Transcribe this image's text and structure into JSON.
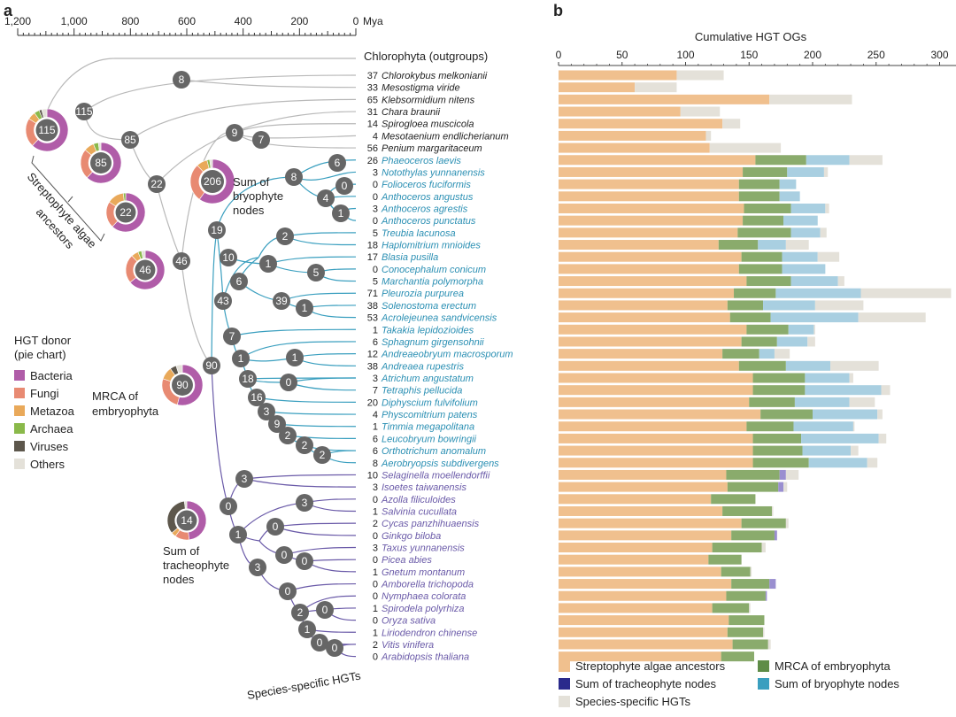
{
  "panels": {
    "a": "a",
    "b": "b"
  },
  "timeline": {
    "ticks": [
      {
        "label": "1,200",
        "v": 1200
      },
      {
        "label": "1,000",
        "v": 1000
      },
      {
        "label": "800",
        "v": 800
      },
      {
        "label": "600",
        "v": 600
      },
      {
        "label": "400",
        "v": 400
      },
      {
        "label": "200",
        "v": 200
      },
      {
        "label": "0",
        "v": 0
      }
    ],
    "unit": "Mya"
  },
  "outgroup": "Chlorophyta (outgroups)",
  "tree_labels": {
    "sum_bryophyte": [
      "Sum of",
      "bryophyte",
      "nodes"
    ],
    "streptophyte": [
      "Streptophyte algae",
      "ancestors"
    ],
    "mrca": [
      "MRCA of",
      "embryophyta"
    ],
    "sum_tracheophyte": [
      "Sum of",
      "tracheophyte",
      "nodes"
    ],
    "species_specific": "Species-specific HGTs"
  },
  "pie_legend": {
    "title": [
      "HGT donor",
      "(pie chart)"
    ],
    "items": [
      {
        "label": "Bacteria",
        "color": "#b05ca8"
      },
      {
        "label": "Fungi",
        "color": "#e88a72"
      },
      {
        "label": "Metazoa",
        "color": "#e9a95a"
      },
      {
        "label": "Archaea",
        "color": "#8ab94a"
      },
      {
        "label": "Viruses",
        "color": "#5d574c"
      },
      {
        "label": "Others",
        "color": "#e4e1d9"
      }
    ]
  },
  "pies": [
    {
      "label": "115"
    },
    {
      "label": "85"
    },
    {
      "label": "22"
    },
    {
      "label": "46"
    },
    {
      "label": "206"
    },
    {
      "label": "90"
    },
    {
      "label": "14"
    }
  ],
  "tree_nodes": [
    "8",
    "115",
    "85",
    "22",
    "46",
    "9",
    "7",
    "90",
    "6",
    "8",
    "0",
    "4",
    "1",
    "19",
    "2",
    "10",
    "1",
    "5",
    "6",
    "39",
    "1",
    "43",
    "7",
    "1",
    "1",
    "18",
    "0",
    "16",
    "3",
    "9",
    "2",
    "2",
    "2",
    "3",
    "0",
    "3",
    "1",
    "0",
    "0",
    "0",
    "3",
    "0",
    "2",
    "0",
    "1",
    "0",
    "0"
  ],
  "species": [
    {
      "name": "Chlorokybus melkonianii",
      "count": "37",
      "group": "alga"
    },
    {
      "name": "Mesostigma viride",
      "count": "33",
      "group": "alga"
    },
    {
      "name": "Klebsormidium nitens",
      "count": "65",
      "group": "alga"
    },
    {
      "name": "Chara braunii",
      "count": "31",
      "group": "alga"
    },
    {
      "name": "Spirogloea muscicola",
      "count": "14",
      "group": "alga"
    },
    {
      "name": "Mesotaenium endlicherianum",
      "count": "4",
      "group": "alga"
    },
    {
      "name": "Penium margaritaceum",
      "count": "56",
      "group": "alga"
    },
    {
      "name": "Phaeoceros laevis",
      "count": "26",
      "group": "bryo"
    },
    {
      "name": "Notothylas yunnanensis",
      "count": "3",
      "group": "bryo"
    },
    {
      "name": "Folioceros fuciformis",
      "count": "0",
      "group": "bryo"
    },
    {
      "name": "Anthoceros angustus",
      "count": "0",
      "group": "bryo"
    },
    {
      "name": "Anthoceros agrestis",
      "count": "3",
      "group": "bryo"
    },
    {
      "name": "Anthoceros punctatus",
      "count": "0",
      "group": "bryo"
    },
    {
      "name": "Treubia lacunosa",
      "count": "5",
      "group": "bryo"
    },
    {
      "name": "Haplomitrium mnioides",
      "count": "18",
      "group": "bryo"
    },
    {
      "name": "Blasia pusilla",
      "count": "17",
      "group": "bryo"
    },
    {
      "name": "Conocephalum conicum",
      "count": "0",
      "group": "bryo"
    },
    {
      "name": "Marchantia polymorpha",
      "count": "5",
      "group": "bryo"
    },
    {
      "name": "Pleurozia purpurea",
      "count": "71",
      "group": "bryo"
    },
    {
      "name": "Solenostoma erectum",
      "count": "38",
      "group": "bryo"
    },
    {
      "name": "Acrolejeunea sandvicensis",
      "count": "53",
      "group": "bryo"
    },
    {
      "name": "Takakia lepidozioides",
      "count": "1",
      "group": "bryo"
    },
    {
      "name": "Sphagnum girgensohnii",
      "count": "6",
      "group": "bryo"
    },
    {
      "name": "Andreaeobryum macrosporum",
      "count": "12",
      "group": "bryo"
    },
    {
      "name": "Andreaea rupestris",
      "count": "38",
      "group": "bryo"
    },
    {
      "name": "Atrichum angustatum",
      "count": "3",
      "group": "bryo"
    },
    {
      "name": "Tetraphis pellucida",
      "count": "7",
      "group": "bryo"
    },
    {
      "name": "Diphyscium fulvifolium",
      "count": "20",
      "group": "bryo"
    },
    {
      "name": "Physcomitrium patens",
      "count": "4",
      "group": "bryo"
    },
    {
      "name": "Timmia megapolitana",
      "count": "1",
      "group": "bryo"
    },
    {
      "name": "Leucobryum bowringii",
      "count": "6",
      "group": "bryo"
    },
    {
      "name": "Orthotrichum anomalum",
      "count": "6",
      "group": "bryo"
    },
    {
      "name": "Aerobryopsis subdivergens",
      "count": "8",
      "group": "bryo"
    },
    {
      "name": "Selaginella moellendorffii",
      "count": "10",
      "group": "trach"
    },
    {
      "name": "Isoetes taiwanensis",
      "count": "3",
      "group": "trach"
    },
    {
      "name": "Azolla filiculoides",
      "count": "0",
      "group": "trach"
    },
    {
      "name": "Salvinia cucullata",
      "count": "1",
      "group": "trach"
    },
    {
      "name": "Cycas panzhihuaensis",
      "count": "2",
      "group": "trach"
    },
    {
      "name": "Ginkgo biloba",
      "count": "0",
      "group": "trach"
    },
    {
      "name": "Taxus yunnanensis",
      "count": "3",
      "group": "trach"
    },
    {
      "name": "Picea abies",
      "count": "0",
      "group": "trach"
    },
    {
      "name": "Gnetum montanum",
      "count": "1",
      "group": "trach"
    },
    {
      "name": "Amborella trichopoda",
      "count": "0",
      "group": "trach"
    },
    {
      "name": "Nymphaea colorata",
      "count": "0",
      "group": "trach"
    },
    {
      "name": "Spirodela polyrhiza",
      "count": "1",
      "group": "trach"
    },
    {
      "name": "Oryza sativa",
      "count": "0",
      "group": "trach"
    },
    {
      "name": "Liriodendron chinense",
      "count": "1",
      "group": "trach"
    },
    {
      "name": "Vitis vinifera",
      "count": "2",
      "group": "trach"
    },
    {
      "name": "Arabidopsis thaliana",
      "count": "0",
      "group": "trach"
    }
  ],
  "colors": {
    "alga_text": "#222222",
    "bryo_text": "#2a8fb3",
    "trach_text": "#6a5aa8",
    "bryo_branch": "#3a9fbf",
    "trach_branch": "#6a5aa8",
    "alga_branch": "#b8b8b8",
    "node_fill": "#666666"
  },
  "chart_data": {
    "type": "bar",
    "stacked": true,
    "orientation": "horizontal",
    "xlabel": "Cumulative HGT OGs",
    "xlim": [
      0,
      310
    ],
    "xticks": [
      0,
      50,
      100,
      150,
      200,
      250,
      300
    ],
    "legend_position": "bottom",
    "series": [
      {
        "name": "Streptophyte algae ancestors",
        "color": "#f0c08e",
        "values": [
          93,
          60,
          166,
          96,
          129,
          116,
          119,
          155,
          145,
          142,
          142,
          146,
          145,
          141,
          126,
          144,
          142,
          148,
          138,
          133,
          135,
          148,
          144,
          129,
          142,
          153,
          153,
          150,
          159,
          148,
          153,
          153,
          153,
          132,
          133,
          120,
          129,
          144,
          136,
          121,
          118,
          128,
          136,
          132,
          121,
          134,
          133,
          137,
          128
        ]
      },
      {
        "name": "MRCA of embryophyta",
        "color": "#8aab6c",
        "values": [
          0,
          0,
          0,
          0,
          0,
          0,
          0,
          40,
          35,
          32,
          32,
          37,
          32,
          42,
          31,
          32,
          34,
          35,
          33,
          28,
          32,
          33,
          28,
          29,
          37,
          41,
          41,
          36,
          41,
          37,
          38,
          39,
          44,
          42,
          40,
          35,
          39,
          35,
          34,
          39,
          26,
          23,
          30,
          31,
          29,
          28,
          28,
          28,
          26
        ]
      },
      {
        "name": "Sum of tracheophyte nodes",
        "color": "#9a8fd0",
        "values": [
          0,
          0,
          0,
          0,
          0,
          0,
          0,
          0,
          0,
          0,
          0,
          0,
          0,
          0,
          0,
          0,
          0,
          0,
          0,
          0,
          0,
          0,
          0,
          0,
          0,
          0,
          0,
          0,
          0,
          0,
          0,
          0,
          0,
          5,
          4,
          0,
          0,
          0,
          2,
          0,
          0,
          0,
          5,
          1,
          0,
          0,
          0,
          0,
          0
        ]
      },
      {
        "name": "Sum of bryophyte nodes",
        "color": "#a9cfe1",
        "values": [
          0,
          0,
          0,
          0,
          0,
          0,
          0,
          34,
          29,
          13,
          16,
          27,
          27,
          23,
          22,
          28,
          34,
          37,
          67,
          41,
          69,
          20,
          24,
          12,
          35,
          35,
          60,
          43,
          51,
          47,
          61,
          38,
          46,
          0,
          0,
          0,
          0,
          0,
          0,
          0,
          0,
          0,
          0,
          0,
          0,
          0,
          0,
          0,
          0
        ]
      },
      {
        "name": "Species-specific HGTs",
        "color": "#e4e1d9",
        "values": [
          37,
          33,
          65,
          31,
          14,
          4,
          56,
          26,
          3,
          0,
          0,
          3,
          0,
          5,
          18,
          17,
          0,
          5,
          71,
          38,
          53,
          1,
          6,
          12,
          38,
          3,
          7,
          20,
          4,
          1,
          6,
          6,
          8,
          10,
          3,
          0,
          1,
          2,
          0,
          3,
          0,
          1,
          0,
          0,
          1,
          0,
          1,
          2,
          0
        ]
      }
    ],
    "legend": [
      {
        "label": "Streptophyte algae ancestors",
        "color": "#f0c08e"
      },
      {
        "label": "MRCA of embryophyta",
        "color": "#5e8c47"
      },
      {
        "label": "Sum of tracheophyte nodes",
        "color": "#2a2a8c"
      },
      {
        "label": "Sum of bryophyte nodes",
        "color": "#3a9fbf"
      },
      {
        "label": "Species-specific HGTs",
        "color": "#e4e1d9"
      }
    ]
  }
}
